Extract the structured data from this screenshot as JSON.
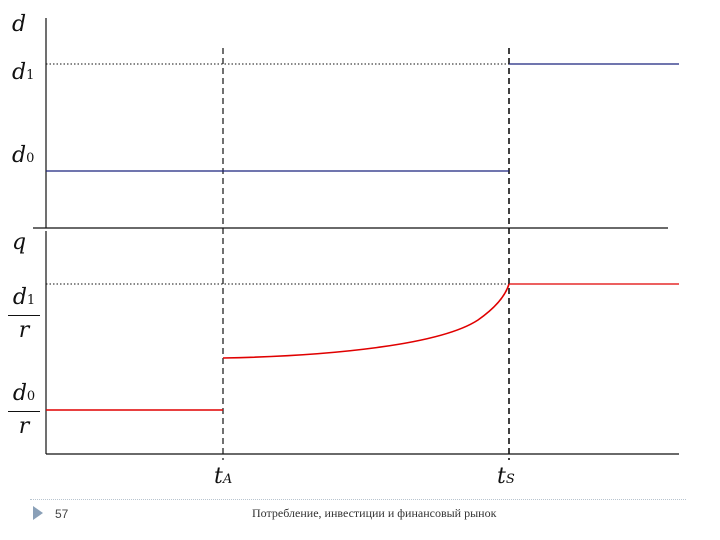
{
  "top_panel": {
    "axis_label": "d",
    "level_high": {
      "symbol": "d",
      "sub": "1"
    },
    "level_low": {
      "symbol": "d",
      "sub": "0"
    }
  },
  "bottom_panel": {
    "axis_label": "q",
    "frac_high": {
      "num_symbol": "d",
      "num_sub": "1",
      "den": "r"
    },
    "frac_low": {
      "num_symbol": "d",
      "num_sub": "0",
      "den": "r"
    }
  },
  "time_marks": {
    "t_a": {
      "symbol": "t",
      "sub": "A"
    },
    "t_s": {
      "symbol": "t",
      "sub": "S"
    }
  },
  "footer": {
    "page_number": "57",
    "title": "Потребление, инвестиции и финансовый рынок"
  },
  "colors": {
    "axis": "#111111",
    "d_line": "#1a237e",
    "q_line": "#e00000",
    "dashed": "#111111",
    "marker": "#8aa0b8"
  }
}
